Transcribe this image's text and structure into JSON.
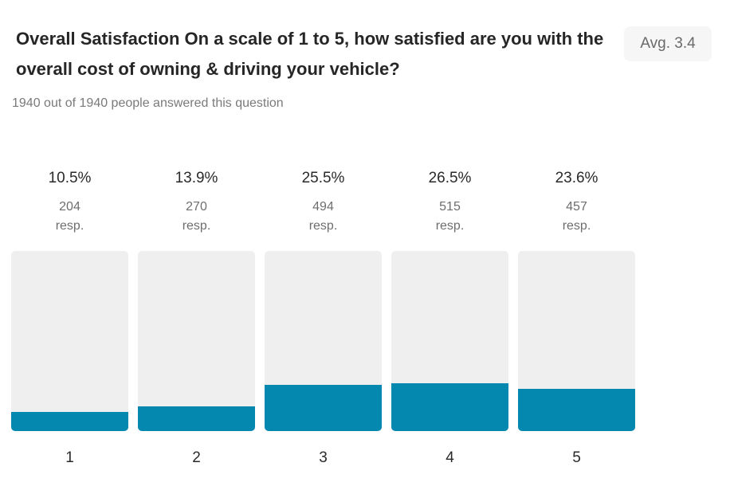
{
  "question": {
    "title": "Overall Satisfaction On a scale of 1 to 5, how satisfied are you with the overall cost of owning & driving your vehicle?",
    "answered_text": "1940 out of 1940 people answered this question",
    "avg_label": "Avg. 3.4"
  },
  "colors": {
    "bar_fill": "#0588b0",
    "bar_track": "#efefef",
    "badge_bg": "#f6f6f6"
  },
  "chart_data": {
    "type": "bar",
    "categories": [
      "1",
      "2",
      "3",
      "4",
      "5"
    ],
    "values": [
      204,
      270,
      494,
      515,
      457
    ],
    "percent_labels": [
      "10.5%",
      "13.9%",
      "25.5%",
      "26.5%",
      "23.6%"
    ],
    "count_labels": [
      "204",
      "270",
      "494",
      "515",
      "457"
    ],
    "unit_label": "resp.",
    "ylim": [
      0,
      1940
    ],
    "grid": false
  }
}
